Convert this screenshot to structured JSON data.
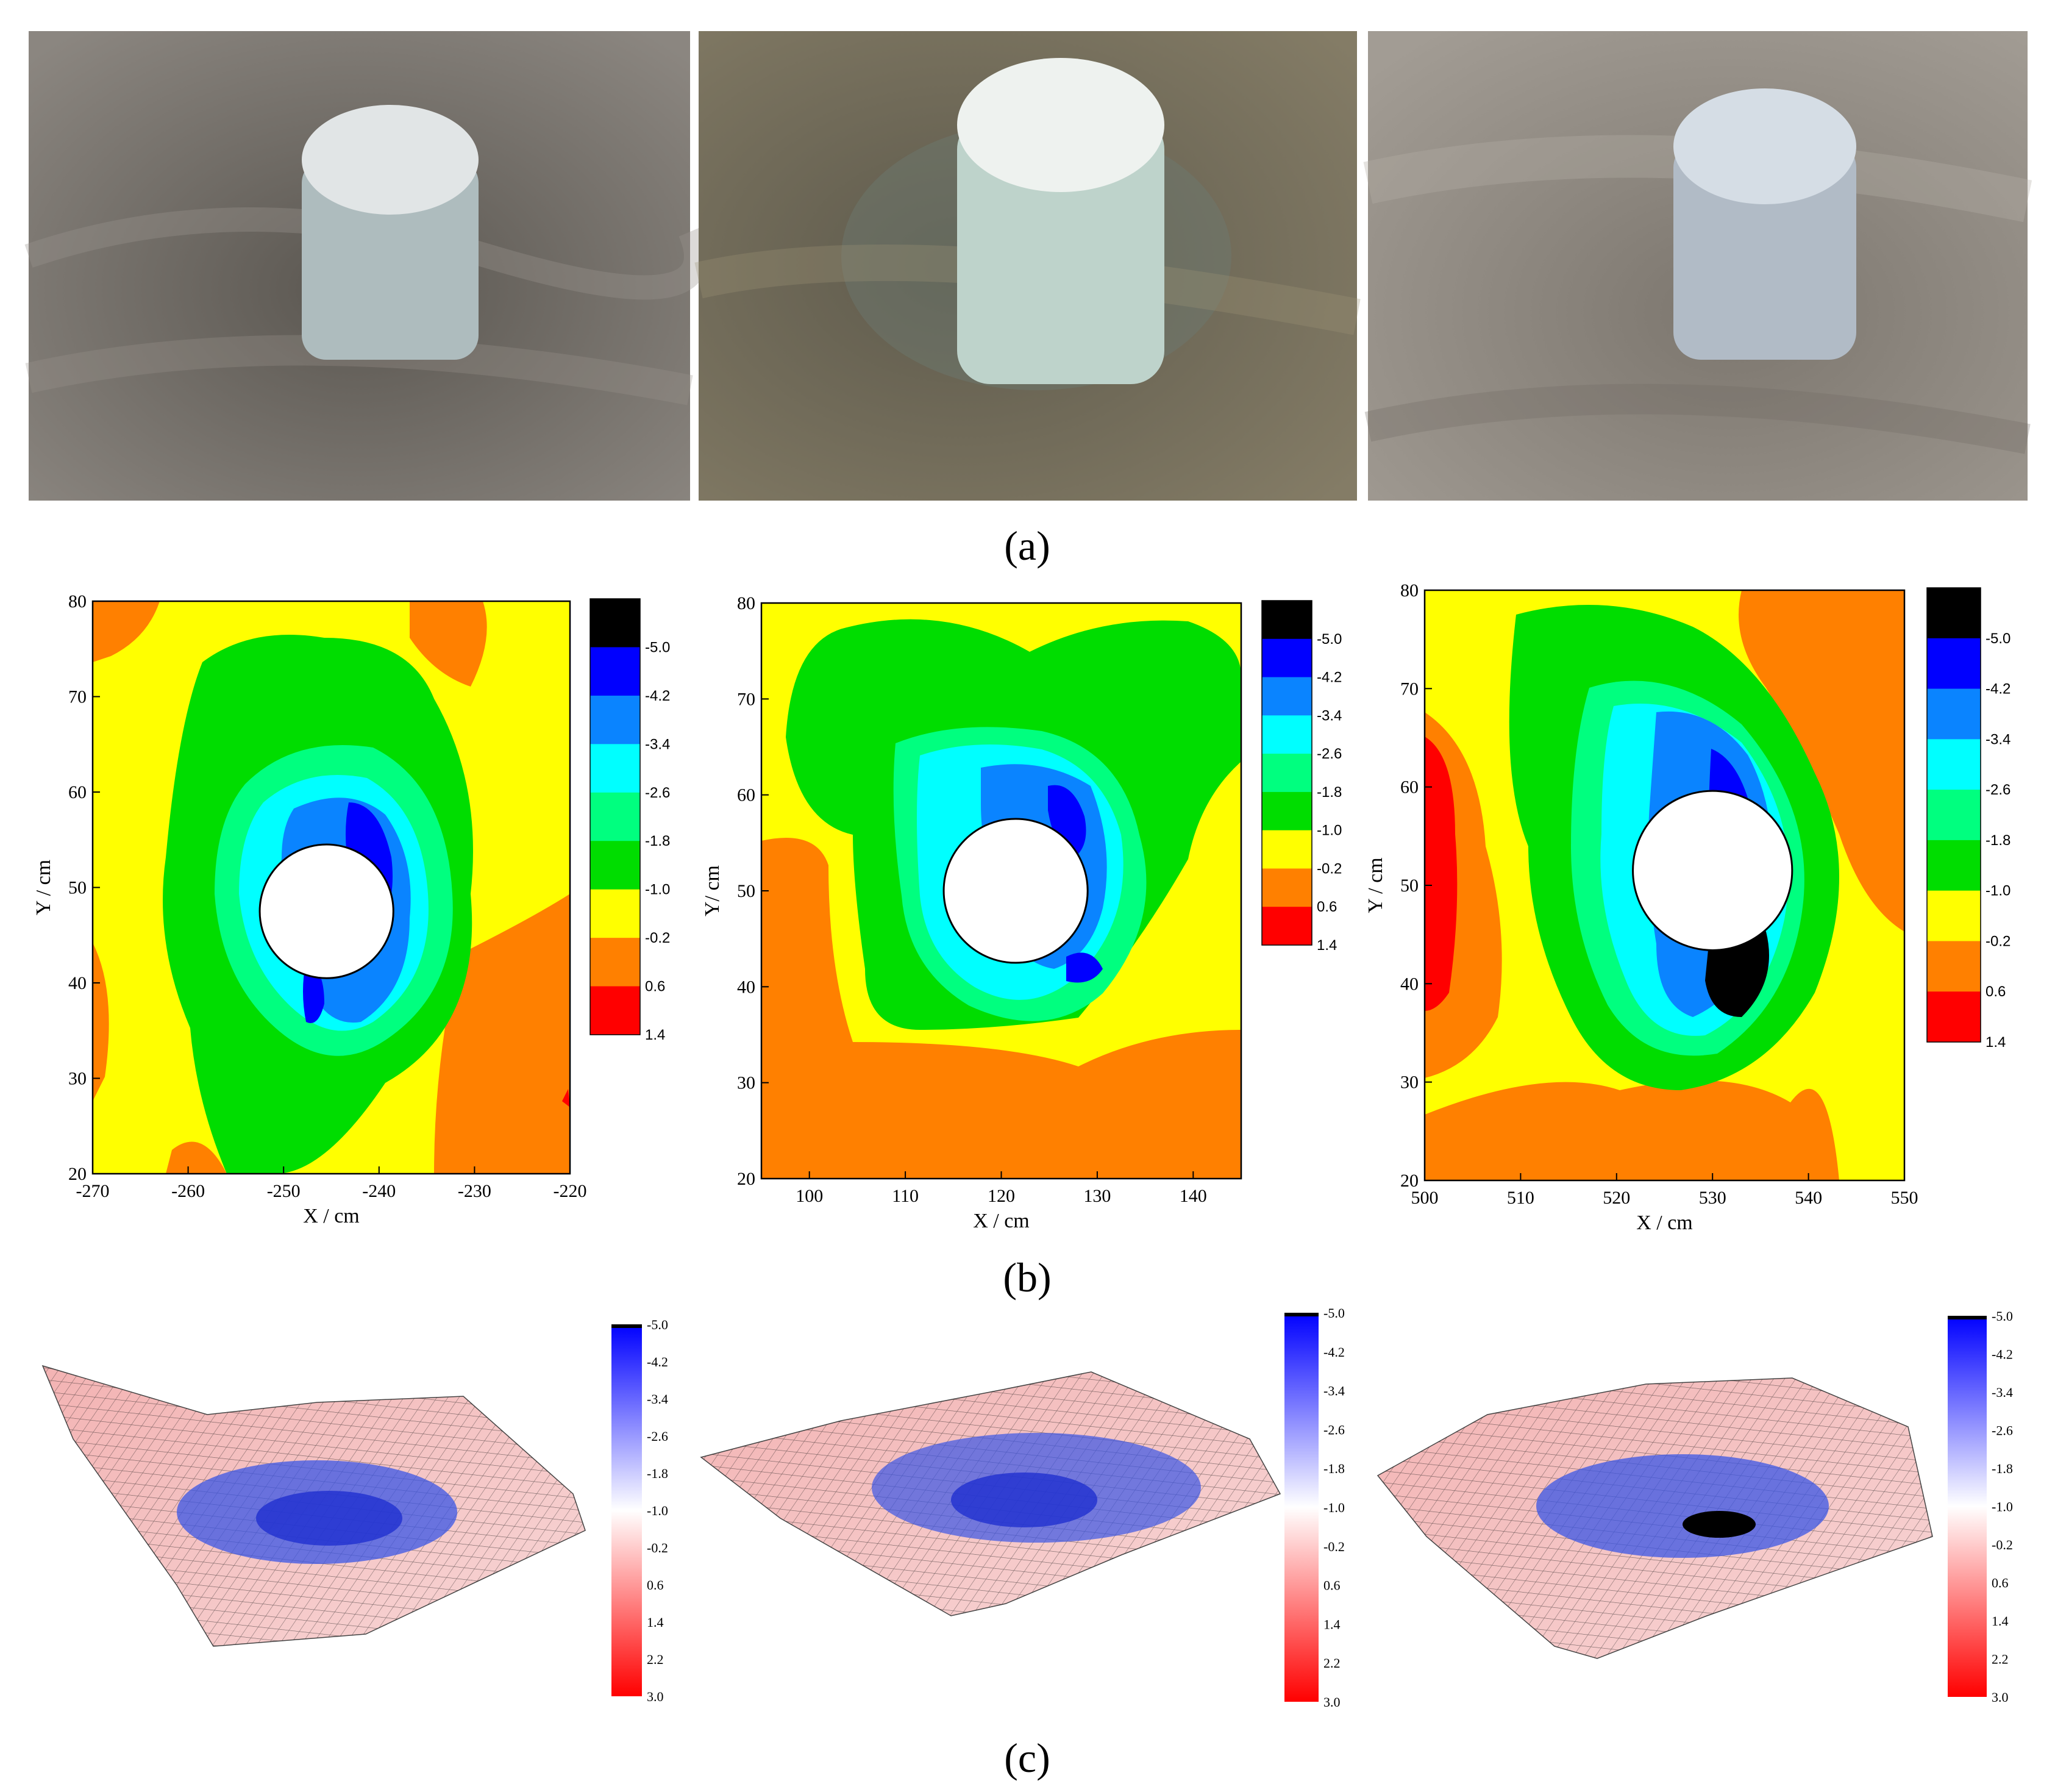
{
  "figure": {
    "labels": {
      "a": "(a)",
      "b": "(b)",
      "c": "(c)"
    },
    "photos": [
      {
        "name": "photo-1",
        "bg": "#7a7670",
        "pier": "#c9d6d6"
      },
      {
        "name": "photo-2",
        "bg": "#6e6958",
        "pier": "#d7e4dc"
      },
      {
        "name": "photo-3",
        "bg": "#918c86",
        "pier": "#c2cdd6"
      }
    ]
  },
  "chart_data": [
    {
      "type": "contour",
      "panel": "b-1",
      "xlabel": "X / cm",
      "ylabel": "Y / cm",
      "xlim": [
        -270,
        -220
      ],
      "ylim": [
        20,
        80
      ],
      "xticks": [
        -270,
        -260,
        -250,
        -240,
        -230,
        -220
      ],
      "yticks": [
        20,
        30,
        40,
        50,
        60,
        70,
        80
      ],
      "pier_center": [
        -245.5,
        47.5
      ],
      "pier_radius": 7,
      "scour_center": [
        -242,
        47
      ],
      "colorbar_ticks": [
        "-5.0",
        "-4.2",
        "-3.4",
        "-2.6",
        "-1.8",
        "-1.0",
        "-0.2",
        "0.6",
        "1.4"
      ]
    },
    {
      "type": "contour",
      "panel": "b-2",
      "xlabel": "X / cm",
      "ylabel": "Y/ cm",
      "xlim": [
        95,
        145
      ],
      "ylim": [
        20,
        80
      ],
      "xticks": [
        100,
        110,
        120,
        130,
        140
      ],
      "yticks": [
        20,
        30,
        40,
        50,
        60,
        70,
        80
      ],
      "pier_center": [
        121.5,
        50
      ],
      "pier_radius": 7.5,
      "scour_center": [
        124,
        50
      ],
      "colorbar_ticks": [
        "-5.0",
        "-4.2",
        "-3.4",
        "-2.6",
        "-1.8",
        "-1.0",
        "-0.2",
        "0.6",
        "1.4"
      ]
    },
    {
      "type": "contour",
      "panel": "b-3",
      "xlabel": "X / cm",
      "ylabel": "Y / cm",
      "xlim": [
        500,
        550
      ],
      "ylim": [
        20,
        80
      ],
      "xticks": [
        500,
        510,
        520,
        530,
        540,
        550
      ],
      "yticks": [
        20,
        30,
        40,
        50,
        60,
        70,
        80
      ],
      "pier_center": [
        530,
        51.5
      ],
      "pier_radius": 8.3,
      "scour_center": [
        533,
        48
      ],
      "colorbar_ticks": [
        "-5.0",
        "-4.2",
        "-3.4",
        "-2.6",
        "-1.8",
        "-1.0",
        "-0.2",
        "0.6",
        "1.4"
      ]
    },
    {
      "type": "surface",
      "panel": "c-1",
      "colorbar_ticks": [
        "-5.0",
        "-4.2",
        "-3.4",
        "-2.6",
        "-1.8",
        "-1.0",
        "-0.2",
        "0.6",
        "1.4",
        "2.2",
        "3.0"
      ]
    },
    {
      "type": "surface",
      "panel": "c-2",
      "colorbar_ticks": [
        "-5.0",
        "-4.2",
        "-3.4",
        "-2.6",
        "-1.8",
        "-1.0",
        "-0.2",
        "0.6",
        "1.4",
        "2.2",
        "3.0"
      ]
    },
    {
      "type": "surface",
      "panel": "c-3",
      "colorbar_ticks": [
        "-5.0",
        "-4.2",
        "-3.4",
        "-2.6",
        "-1.8",
        "-1.0",
        "-0.2",
        "0.6",
        "1.4",
        "2.2",
        "3.0"
      ]
    }
  ],
  "contour_palette": [
    "#000000",
    "#0000ff",
    "#0a84ff",
    "#00ffff",
    "#00ff7f",
    "#00dd00",
    "#ffff00",
    "#ff8000",
    "#ff0000"
  ],
  "surface_palette": {
    "deep": "#0000ff",
    "mid": "#ffffff",
    "high": "#ff0000",
    "black": "#000000"
  }
}
